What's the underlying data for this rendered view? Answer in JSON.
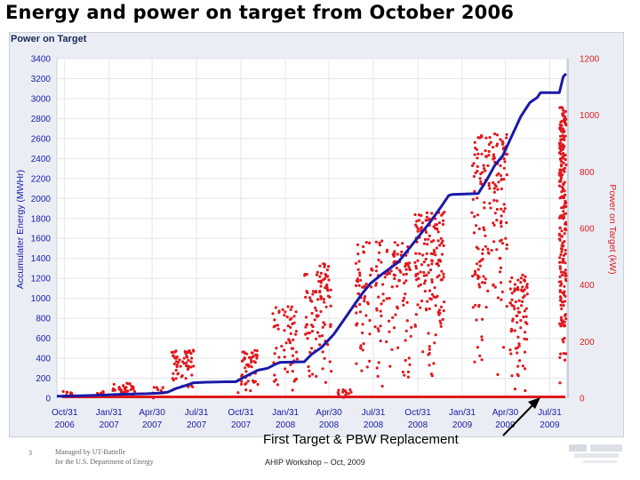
{
  "slide": {
    "title": "Energy and power on target from October 2006",
    "annotation": "First Target & PBW Replacement",
    "footer_page": "3",
    "footer_left": "Managed by UT-Battelle\nfor the U.S. Department of Energy",
    "footer_center": "AHIP Workshop – Oct, 2009"
  },
  "chart_data": {
    "type": "line",
    "title": "Power on Target",
    "ylabel": "Accumulater Energy (MWHr)",
    "y2label": "Power on Target (kW)",
    "ylim": [
      0,
      3400
    ],
    "y2lim": [
      0,
      1200
    ],
    "yticks": [
      "3400",
      "3200",
      "3000",
      "2800",
      "2600",
      "2400",
      "2200",
      "2000",
      "1800",
      "1600",
      "1400",
      "1200",
      "1000",
      "800",
      "600",
      "400",
      "200",
      "0"
    ],
    "y2ticks": [
      "1200",
      "1000",
      "800",
      "600",
      "400",
      "200",
      "0"
    ],
    "xticks": [
      {
        "top": "Oct/31",
        "bottom": "2006"
      },
      {
        "top": "Jan/31",
        "bottom": "2007"
      },
      {
        "top": "Apr/30",
        "bottom": "2007"
      },
      {
        "top": "Jul/31",
        "bottom": "2007"
      },
      {
        "top": "Oct/31",
        "bottom": "2007"
      },
      {
        "top": "Jan/31",
        "bottom": "2008"
      },
      {
        "top": "Apr/30",
        "bottom": "2008"
      },
      {
        "top": "Jul/31",
        "bottom": "2008"
      },
      {
        "top": "Oct/31",
        "bottom": "2008"
      },
      {
        "top": "Jan/31",
        "bottom": "2009"
      },
      {
        "top": "Apr/30",
        "bottom": "2009"
      },
      {
        "top": "Jul/31",
        "bottom": "2009"
      }
    ],
    "xtick_dates": [
      "2006-10-31",
      "2007-01-31",
      "2007-04-30",
      "2007-07-31",
      "2007-10-31",
      "2008-01-31",
      "2008-04-30",
      "2008-07-31",
      "2008-10-31",
      "2009-01-31",
      "2009-04-30",
      "2009-07-31"
    ],
    "xlim": [
      "2006-10-15",
      "2009-09-05"
    ],
    "series": [
      {
        "name": "Accumulated Energy",
        "axis": "left",
        "color": "#1a1aa8",
        "points": [
          [
            "2006-10-15",
            20
          ],
          [
            "2006-12-01",
            25
          ],
          [
            "2007-01-10",
            30
          ],
          [
            "2007-02-01",
            35
          ],
          [
            "2007-03-01",
            40
          ],
          [
            "2007-04-20",
            45
          ],
          [
            "2007-05-10",
            50
          ],
          [
            "2007-06-01",
            60
          ],
          [
            "2007-06-20",
            100
          ],
          [
            "2007-07-10",
            130
          ],
          [
            "2007-07-25",
            155
          ],
          [
            "2007-08-20",
            160
          ],
          [
            "2007-09-30",
            165
          ],
          [
            "2007-10-20",
            165
          ],
          [
            "2007-11-10",
            220
          ],
          [
            "2007-12-05",
            280
          ],
          [
            "2007-12-25",
            300
          ],
          [
            "2008-01-10",
            340
          ],
          [
            "2008-01-20",
            360
          ],
          [
            "2008-03-10",
            365
          ],
          [
            "2008-03-25",
            440
          ],
          [
            "2008-04-15",
            510
          ],
          [
            "2008-05-10",
            640
          ],
          [
            "2008-06-05",
            820
          ],
          [
            "2008-06-25",
            960
          ],
          [
            "2008-07-10",
            1060
          ],
          [
            "2008-07-25",
            1150
          ],
          [
            "2008-08-20",
            1250
          ],
          [
            "2008-09-20",
            1360
          ],
          [
            "2008-10-15",
            1510
          ],
          [
            "2008-11-05",
            1640
          ],
          [
            "2008-11-25",
            1760
          ],
          [
            "2008-12-20",
            1930
          ],
          [
            "2009-01-03",
            2030
          ],
          [
            "2009-01-10",
            2040
          ],
          [
            "2009-03-05",
            2050
          ],
          [
            "2009-03-22",
            2180
          ],
          [
            "2009-04-08",
            2330
          ],
          [
            "2009-04-25",
            2430
          ],
          [
            "2009-05-10",
            2590
          ],
          [
            "2009-06-01",
            2820
          ],
          [
            "2009-06-20",
            2960
          ],
          [
            "2009-07-05",
            3010
          ],
          [
            "2009-07-12",
            3060
          ],
          [
            "2009-07-20",
            3060
          ],
          [
            "2009-08-20",
            3060
          ],
          [
            "2009-08-28",
            3220
          ],
          [
            "2009-09-03",
            3250
          ]
        ]
      },
      {
        "name": "Power on Target",
        "axis": "right",
        "color": "#e0191e",
        "clusters": [
          {
            "start": "2006-10-28",
            "end": "2006-11-20",
            "lo": 0,
            "hi": 25,
            "n": 10
          },
          {
            "start": "2007-01-05",
            "end": "2007-01-20",
            "lo": 0,
            "hi": 25,
            "n": 6
          },
          {
            "start": "2007-02-05",
            "end": "2007-03-25",
            "lo": 0,
            "hi": 55,
            "n": 30
          },
          {
            "start": "2007-05-01",
            "end": "2007-05-25",
            "lo": 0,
            "hi": 40,
            "n": 12
          },
          {
            "start": "2007-06-10",
            "end": "2007-07-25",
            "lo": 20,
            "hi": 170,
            "n": 60
          },
          {
            "start": "2007-10-25",
            "end": "2007-12-05",
            "lo": 10,
            "hi": 170,
            "n": 50
          },
          {
            "start": "2008-01-05",
            "end": "2008-02-25",
            "lo": 0,
            "hi": 330,
            "n": 60
          },
          {
            "start": "2008-03-10",
            "end": "2008-05-05",
            "lo": 20,
            "hi": 480,
            "n": 100
          },
          {
            "start": "2008-05-15",
            "end": "2008-06-15",
            "lo": 0,
            "hi": 30,
            "n": 15
          },
          {
            "start": "2008-06-25",
            "end": "2008-10-20",
            "lo": 30,
            "hi": 560,
            "n": 170
          },
          {
            "start": "2008-10-25",
            "end": "2008-12-25",
            "lo": 60,
            "hi": 660,
            "n": 150
          },
          {
            "start": "2009-02-20",
            "end": "2009-05-05",
            "lo": 60,
            "hi": 940,
            "n": 180
          },
          {
            "start": "2009-05-10",
            "end": "2009-06-15",
            "lo": 10,
            "hi": 440,
            "n": 80
          },
          {
            "start": "2009-08-20",
            "end": "2009-09-03",
            "lo": 10,
            "hi": 1030,
            "n": 220
          }
        ]
      }
    ],
    "grid": true,
    "legend": "none"
  }
}
